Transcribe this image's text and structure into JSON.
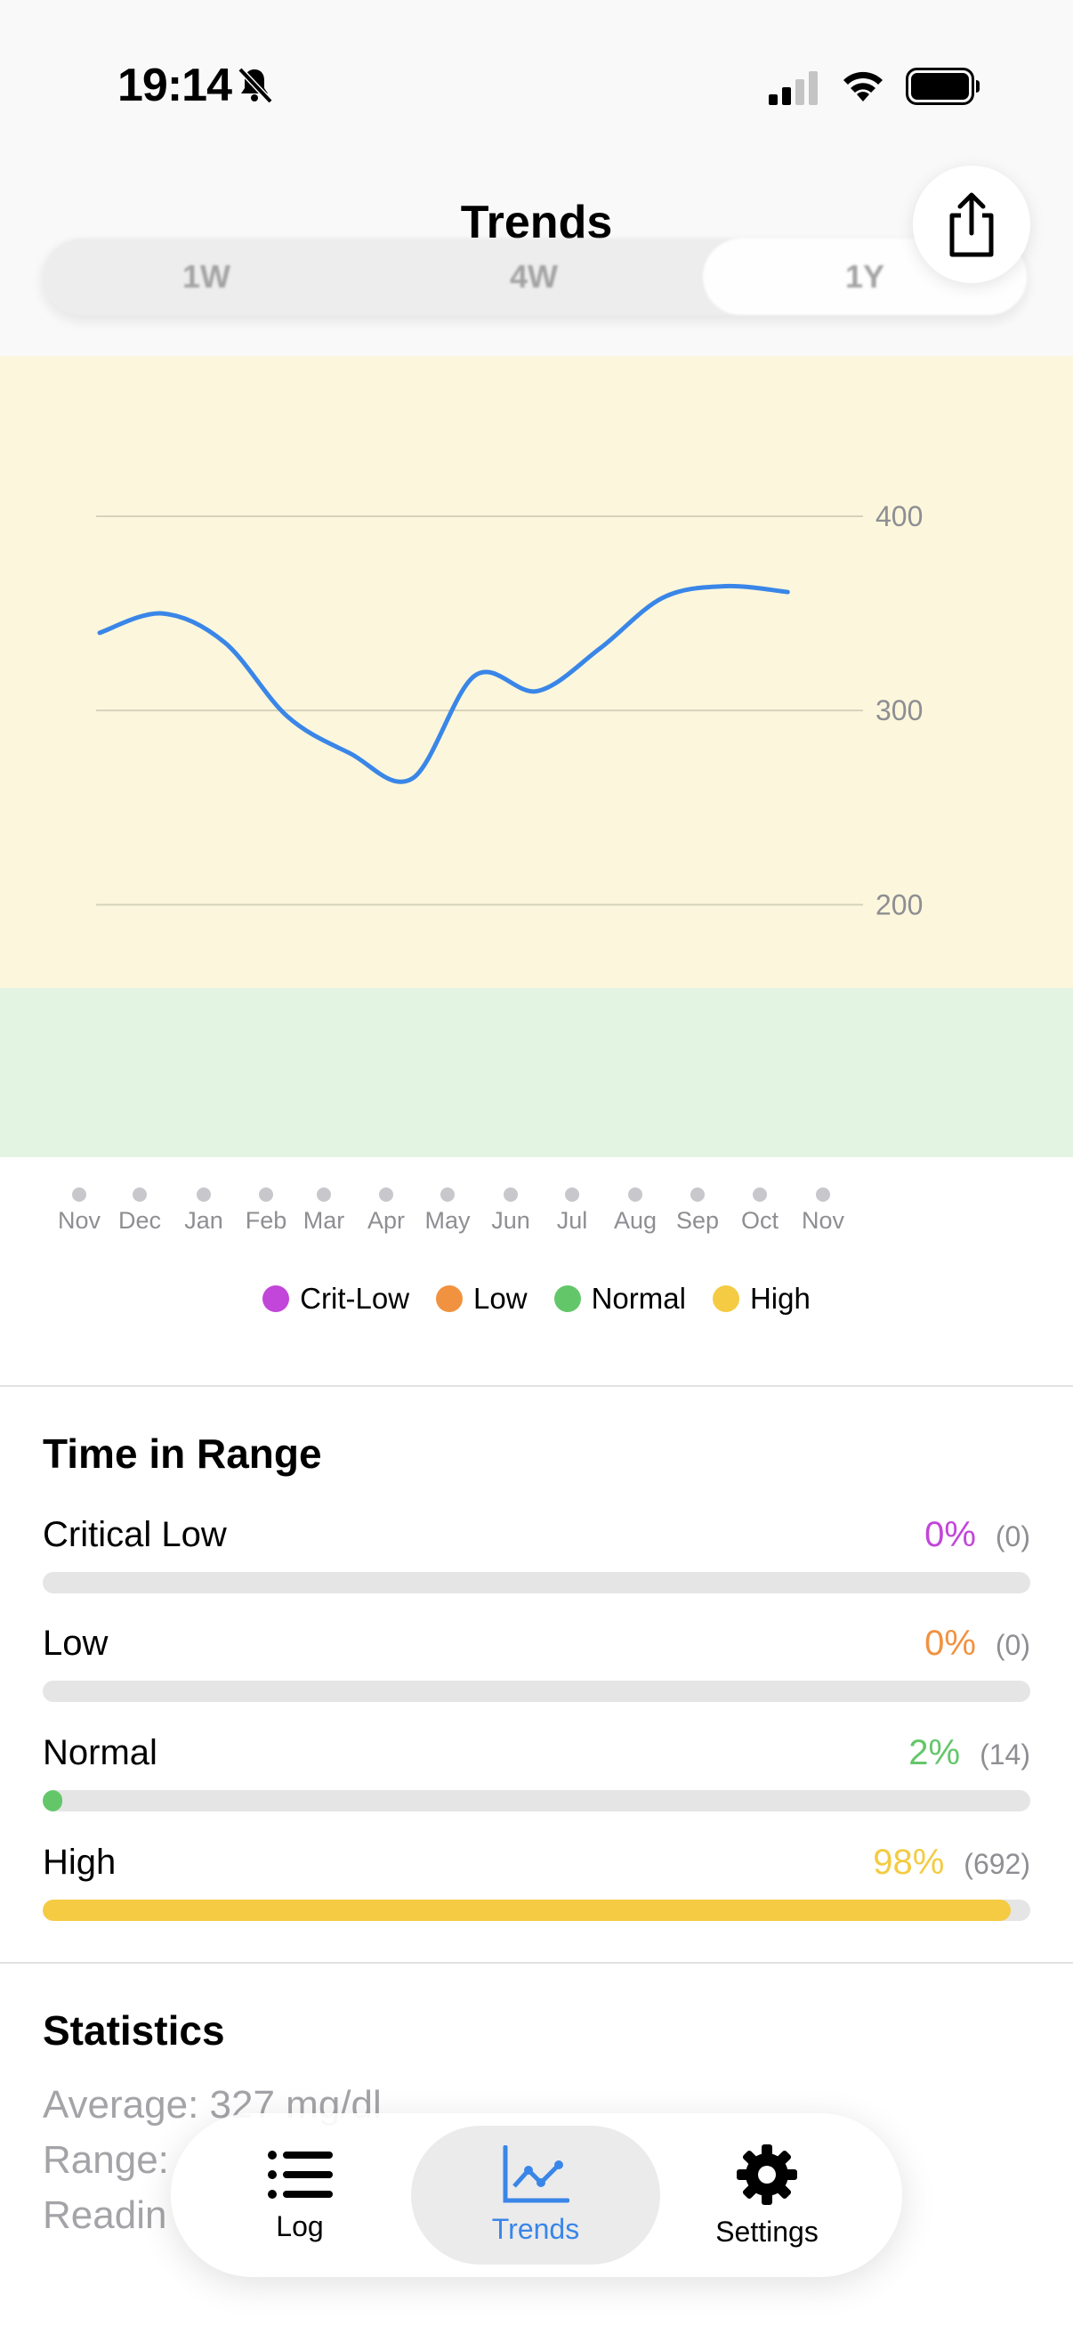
{
  "status_bar": {
    "time": "19:14"
  },
  "header": {
    "title": "Trends",
    "segments": [
      {
        "label": "1W",
        "selected": false
      },
      {
        "label": "4W",
        "selected": false
      },
      {
        "label": "1Y",
        "selected": true
      }
    ]
  },
  "chart_data": {
    "type": "line",
    "x": [
      "Nov",
      "Dec",
      "Jan",
      "Feb",
      "Mar",
      "Apr",
      "May",
      "Jun",
      "Jul",
      "Aug",
      "Sep",
      "Oct",
      "Nov"
    ],
    "series": [
      {
        "values": [
          340,
          350,
          335,
          297,
          278,
          265,
          318,
          310,
          332,
          358,
          364,
          361,
          null
        ],
        "color": "#3a86e8"
      }
    ],
    "ylim": [
      180,
      400
    ],
    "yticks": [
      "400",
      "300",
      "200"
    ],
    "bands": [
      {
        "range": "high",
        "color": "#fcf7dc"
      },
      {
        "range": "normal",
        "color": "#e3f4e3"
      }
    ],
    "legend": [
      {
        "label": "Crit-Low",
        "color": "#c246d9"
      },
      {
        "label": "Low",
        "color": "#f19240"
      },
      {
        "label": "Normal",
        "color": "#63c76a"
      },
      {
        "label": "High",
        "color": "#f4cb42"
      }
    ],
    "legend_position": "bottom",
    "grid": true
  },
  "time_in_range": {
    "title": "Time in Range",
    "rows": [
      {
        "label": "Critical Low",
        "pct": "0%",
        "count": "(0)",
        "fraction": 0.0,
        "color": "#c246d9"
      },
      {
        "label": "Low",
        "pct": "0%",
        "count": "(0)",
        "fraction": 0.0,
        "color": "#f19240"
      },
      {
        "label": "Normal",
        "pct": "2%",
        "count": "(14)",
        "fraction": 0.02,
        "color": "#63c76a"
      },
      {
        "label": "High",
        "pct": "98%",
        "count": "(692)",
        "fraction": 0.98,
        "color": "#f4cb42"
      }
    ]
  },
  "statistics": {
    "title": "Statistics",
    "average": "Average: 327 mg/dl",
    "range": "Range:",
    "readings": "Readin"
  },
  "tabbar": {
    "tabs": [
      {
        "label": "Log",
        "icon": "list-icon",
        "active": false
      },
      {
        "label": "Trends",
        "icon": "chart-icon",
        "active": true
      },
      {
        "label": "Settings",
        "icon": "gear-icon",
        "active": false
      }
    ]
  },
  "colors": {
    "accent": "#3a86e8"
  }
}
